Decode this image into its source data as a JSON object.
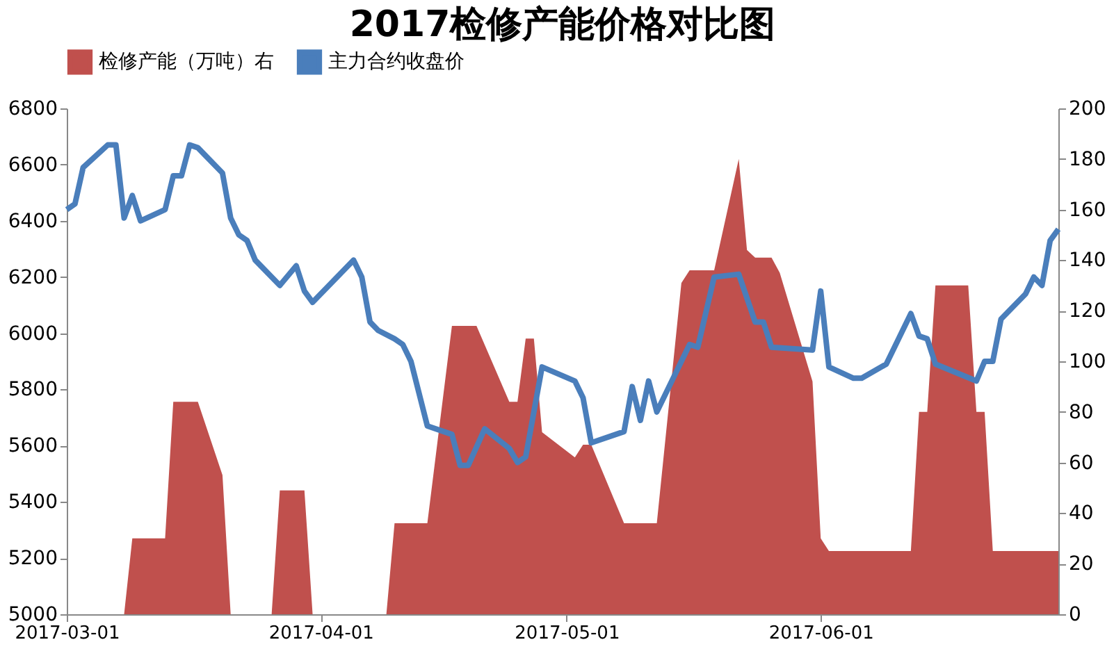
{
  "chart_data": {
    "type": "line",
    "title": "2017检修产能价格对比图",
    "xlim": [
      "2017-03-01",
      "2017-06-30"
    ],
    "xticks": [
      "2017-03-01",
      "2017-04-01",
      "2017-05-01",
      "2017-06-01"
    ],
    "ylim": [
      5000,
      6800
    ],
    "yticks": [
      5000,
      5200,
      5400,
      5600,
      5800,
      6000,
      6200,
      6400,
      6600,
      6800
    ],
    "y2lim": [
      0,
      200
    ],
    "y2ticks": [
      0,
      20,
      40,
      60,
      80,
      100,
      120,
      140,
      160,
      180,
      200
    ],
    "legend": "top",
    "grid": false,
    "series": [
      {
        "name": "检修产能（万吨）右",
        "type": "area",
        "axis": "y2",
        "color": "#c0504d",
        "x": [
          "2017-03-08",
          "2017-03-09",
          "2017-03-13",
          "2017-03-14",
          "2017-03-17",
          "2017-03-20",
          "2017-03-21",
          "2017-03-26",
          "2017-03-27",
          "2017-03-30",
          "2017-03-31",
          "2017-04-09",
          "2017-04-10",
          "2017-04-14",
          "2017-04-17",
          "2017-04-20",
          "2017-04-24",
          "2017-04-25",
          "2017-04-26",
          "2017-04-27",
          "2017-04-28",
          "2017-05-02",
          "2017-05-03",
          "2017-05-04",
          "2017-05-08",
          "2017-05-12",
          "2017-05-15",
          "2017-05-16",
          "2017-05-19",
          "2017-05-22",
          "2017-05-23",
          "2017-05-24",
          "2017-05-26",
          "2017-05-27",
          "2017-05-31",
          "2017-06-01",
          "2017-06-02",
          "2017-06-12",
          "2017-06-13",
          "2017-06-14",
          "2017-06-15",
          "2017-06-19",
          "2017-06-20",
          "2017-06-21",
          "2017-06-22",
          "2017-06-30"
        ],
        "values": [
          0,
          30,
          30,
          84,
          84,
          55,
          0,
          0,
          49,
          49,
          0,
          0,
          36,
          36,
          114,
          114,
          84,
          84,
          109,
          109,
          72,
          62,
          67,
          67,
          36,
          36,
          131,
          136,
          136,
          180,
          144,
          141,
          141,
          135,
          92,
          30,
          25,
          25,
          80,
          80,
          130,
          130,
          80,
          80,
          25,
          25
        ]
      },
      {
        "name": "主力合约收盘价",
        "type": "line",
        "color": "#4a7ebb",
        "x": [
          "2017-03-01",
          "2017-03-02",
          "2017-03-03",
          "2017-03-06",
          "2017-03-07",
          "2017-03-08",
          "2017-03-09",
          "2017-03-10",
          "2017-03-13",
          "2017-03-14",
          "2017-03-15",
          "2017-03-16",
          "2017-03-17",
          "2017-03-20",
          "2017-03-21",
          "2017-03-22",
          "2017-03-23",
          "2017-03-24",
          "2017-03-27",
          "2017-03-29",
          "2017-03-30",
          "2017-03-31",
          "2017-04-05",
          "2017-04-06",
          "2017-04-07",
          "2017-04-08",
          "2017-04-10",
          "2017-04-11",
          "2017-04-12",
          "2017-04-14",
          "2017-04-17",
          "2017-04-18",
          "2017-04-19",
          "2017-04-21",
          "2017-04-24",
          "2017-04-25",
          "2017-04-26",
          "2017-04-28",
          "2017-05-02",
          "2017-05-03",
          "2017-05-04",
          "2017-05-08",
          "2017-05-09",
          "2017-05-10",
          "2017-05-11",
          "2017-05-12",
          "2017-05-16",
          "2017-05-17",
          "2017-05-19",
          "2017-05-22",
          "2017-05-24",
          "2017-05-25",
          "2017-05-26",
          "2017-05-31",
          "2017-06-01",
          "2017-06-02",
          "2017-06-05",
          "2017-06-06",
          "2017-06-09",
          "2017-06-12",
          "2017-06-13",
          "2017-06-14",
          "2017-06-15",
          "2017-06-20",
          "2017-06-21",
          "2017-06-22",
          "2017-06-23",
          "2017-06-26",
          "2017-06-27",
          "2017-06-28",
          "2017-06-29",
          "2017-06-30"
        ],
        "values": [
          6440,
          6460,
          6590,
          6670,
          6670,
          6410,
          6490,
          6400,
          6440,
          6560,
          6560,
          6670,
          6660,
          6570,
          6410,
          6350,
          6330,
          6260,
          6170,
          6240,
          6150,
          6110,
          6260,
          6200,
          6040,
          6010,
          5980,
          5960,
          5900,
          5670,
          5640,
          5530,
          5530,
          5660,
          5590,
          5540,
          5560,
          5880,
          5830,
          5770,
          5610,
          5650,
          5810,
          5690,
          5830,
          5720,
          5960,
          5950,
          6200,
          6210,
          6040,
          6040,
          5950,
          5940,
          6150,
          5880,
          5840,
          5840,
          5890,
          6070,
          5990,
          5980,
          5890,
          5830,
          5900,
          5900,
          6050,
          6140,
          6200,
          6170,
          6330,
          6370
        ]
      }
    ]
  }
}
